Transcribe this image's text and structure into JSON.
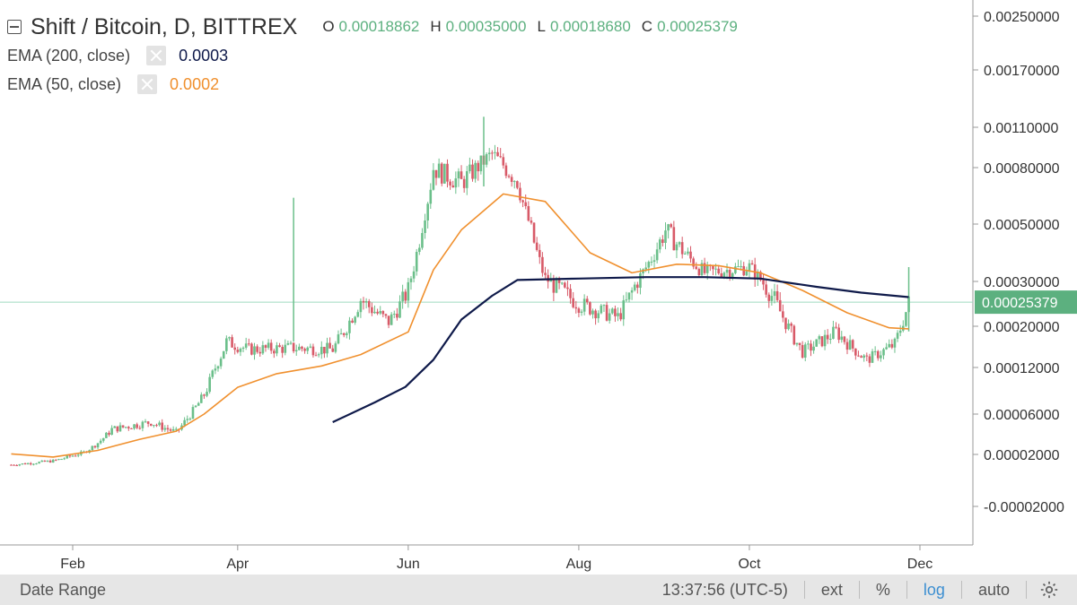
{
  "header": {
    "title": "Shift / Bitcoin, D, BITTREX",
    "ohlc": [
      {
        "label": "O",
        "value": "0.00018862"
      },
      {
        "label": "H",
        "value": "0.00035000"
      },
      {
        "label": "L",
        "value": "0.00018680"
      },
      {
        "label": "C",
        "value": "0.00025379"
      }
    ]
  },
  "indicators": [
    {
      "name": "EMA (200, close)",
      "value": "0.0003",
      "color": "#0f1a4a"
    },
    {
      "name": "EMA (50, close)",
      "value": "0.0002",
      "color": "#f0902e"
    }
  ],
  "colors": {
    "up": "#6bbf8a",
    "down": "#d85a68",
    "ema200": "#0f1a4a",
    "ema50": "#f0902e",
    "last_price_label": "#5cb07f"
  },
  "chart_data": {
    "type": "candlestick",
    "title": "Shift / Bitcoin, D, BITTREX",
    "y_scale": "log",
    "y_ticks": [
      {
        "label": "0.00250000",
        "value": 0.0025
      },
      {
        "label": "0.00170000",
        "value": 0.0017
      },
      {
        "label": "0.00110000",
        "value": 0.0011
      },
      {
        "label": "0.00080000",
        "value": 0.0008
      },
      {
        "label": "0.00050000",
        "value": 0.0005
      },
      {
        "label": "0.00030000",
        "value": 0.0003
      },
      {
        "label": "0.00020000",
        "value": 0.0002
      },
      {
        "label": "0.00012000",
        "value": 0.00012
      },
      {
        "label": "0.00006000",
        "value": 6e-05
      },
      {
        "label": "0.00002000",
        "value": 2e-05
      },
      {
        "label": "-0.00002000",
        "value": -2e-05
      }
    ],
    "x_ticks": [
      {
        "label": "Feb",
        "date": "2018-02-01"
      },
      {
        "label": "Apr",
        "date": "2018-04-01"
      },
      {
        "label": "Jun",
        "date": "2018-06-01"
      },
      {
        "label": "Aug",
        "date": "2018-08-01"
      },
      {
        "label": "Oct",
        "date": "2018-10-01"
      },
      {
        "label": "Dec",
        "date": "2018-12-01"
      }
    ],
    "x_range": [
      "2018-01-10",
      "2018-12-25"
    ],
    "last_price": {
      "label": "0.00025379",
      "value": 0.00025379
    },
    "ema200_points": [
      {
        "date": "2018-05-05",
        "value": 5.2e-05
      },
      {
        "date": "2018-05-20",
        "value": 7.5e-05
      },
      {
        "date": "2018-05-31",
        "value": 9.5e-05
      },
      {
        "date": "2018-06-10",
        "value": 0.000135
      },
      {
        "date": "2018-06-20",
        "value": 0.000215
      },
      {
        "date": "2018-07-01",
        "value": 0.000268
      },
      {
        "date": "2018-07-10",
        "value": 0.000305
      },
      {
        "date": "2018-08-01",
        "value": 0.00031
      },
      {
        "date": "2018-08-25",
        "value": 0.000315
      },
      {
        "date": "2018-09-15",
        "value": 0.000315
      },
      {
        "date": "2018-10-05",
        "value": 0.00031
      },
      {
        "date": "2018-10-25",
        "value": 0.000288
      },
      {
        "date": "2018-11-10",
        "value": 0.000275
      },
      {
        "date": "2018-11-27",
        "value": 0.000265
      }
    ],
    "ema50_points": [
      {
        "date": "2018-01-10",
        "value": 2.05e-05
      },
      {
        "date": "2018-01-25",
        "value": 1.8e-05
      },
      {
        "date": "2018-02-10",
        "value": 2.4e-05
      },
      {
        "date": "2018-02-25",
        "value": 3.5e-05
      },
      {
        "date": "2018-03-10",
        "value": 4.3e-05
      },
      {
        "date": "2018-03-20",
        "value": 6e-05
      },
      {
        "date": "2018-04-01",
        "value": 9.45e-05
      },
      {
        "date": "2018-04-15",
        "value": 0.000112
      },
      {
        "date": "2018-05-01",
        "value": 0.000123
      },
      {
        "date": "2018-05-15",
        "value": 0.000145
      },
      {
        "date": "2018-06-01",
        "value": 0.000189
      },
      {
        "date": "2018-06-10",
        "value": 0.00034
      },
      {
        "date": "2018-06-20",
        "value": 0.00048
      },
      {
        "date": "2018-07-05",
        "value": 0.00066
      },
      {
        "date": "2018-07-20",
        "value": 0.00062
      },
      {
        "date": "2018-08-05",
        "value": 0.0004
      },
      {
        "date": "2018-08-20",
        "value": 0.00033
      },
      {
        "date": "2018-09-05",
        "value": 0.00036
      },
      {
        "date": "2018-09-20",
        "value": 0.000355
      },
      {
        "date": "2018-10-05",
        "value": 0.00033
      },
      {
        "date": "2018-10-20",
        "value": 0.00028
      },
      {
        "date": "2018-11-05",
        "value": 0.00023
      },
      {
        "date": "2018-11-20",
        "value": 0.000197
      },
      {
        "date": "2018-11-27",
        "value": 0.000195
      }
    ],
    "price_path": [
      {
        "date": "2018-01-10",
        "value": 1.2e-05
      },
      {
        "date": "2018-01-25",
        "value": 1.5e-05
      },
      {
        "date": "2018-02-05",
        "value": 2.2e-05
      },
      {
        "date": "2018-02-15",
        "value": 4.5e-05
      },
      {
        "date": "2018-03-01",
        "value": 5.2e-05
      },
      {
        "date": "2018-03-10",
        "value": 4.2e-05
      },
      {
        "date": "2018-03-20",
        "value": 8.5e-05
      },
      {
        "date": "2018-03-28",
        "value": 0.00017
      },
      {
        "date": "2018-04-05",
        "value": 0.000155
      },
      {
        "date": "2018-04-20",
        "value": 0.000158
      },
      {
        "date": "2018-05-05",
        "value": 0.000155
      },
      {
        "date": "2018-05-15",
        "value": 0.00026
      },
      {
        "date": "2018-05-25",
        "value": 0.00021
      },
      {
        "date": "2018-06-01",
        "value": 0.00028
      },
      {
        "date": "2018-06-10",
        "value": 0.0008
      },
      {
        "date": "2018-06-20",
        "value": 0.00072
      },
      {
        "date": "2018-07-01",
        "value": 0.0009
      },
      {
        "date": "2018-07-10",
        "value": 0.00073
      },
      {
        "date": "2018-07-20",
        "value": 0.00031
      },
      {
        "date": "2018-08-01",
        "value": 0.00025
      },
      {
        "date": "2018-08-15",
        "value": 0.00022
      },
      {
        "date": "2018-09-01",
        "value": 0.00048
      },
      {
        "date": "2018-09-15",
        "value": 0.00033
      },
      {
        "date": "2018-10-01",
        "value": 0.00035
      },
      {
        "date": "2018-10-10",
        "value": 0.00026
      },
      {
        "date": "2018-10-20",
        "value": 0.00015
      },
      {
        "date": "2018-11-01",
        "value": 0.00019
      },
      {
        "date": "2018-11-12",
        "value": 0.000135
      },
      {
        "date": "2018-11-22",
        "value": 0.000165
      },
      {
        "date": "2018-11-27",
        "value": 0.000253
      }
    ],
    "grid": false,
    "legend": "top-left"
  },
  "bottom_bar": {
    "date_range": "Date Range",
    "time": "13:37:56",
    "timezone": "(UTC-5)",
    "ext": "ext",
    "percent": "%",
    "log": "log",
    "auto": "auto",
    "settings_icon": "gear-icon"
  }
}
